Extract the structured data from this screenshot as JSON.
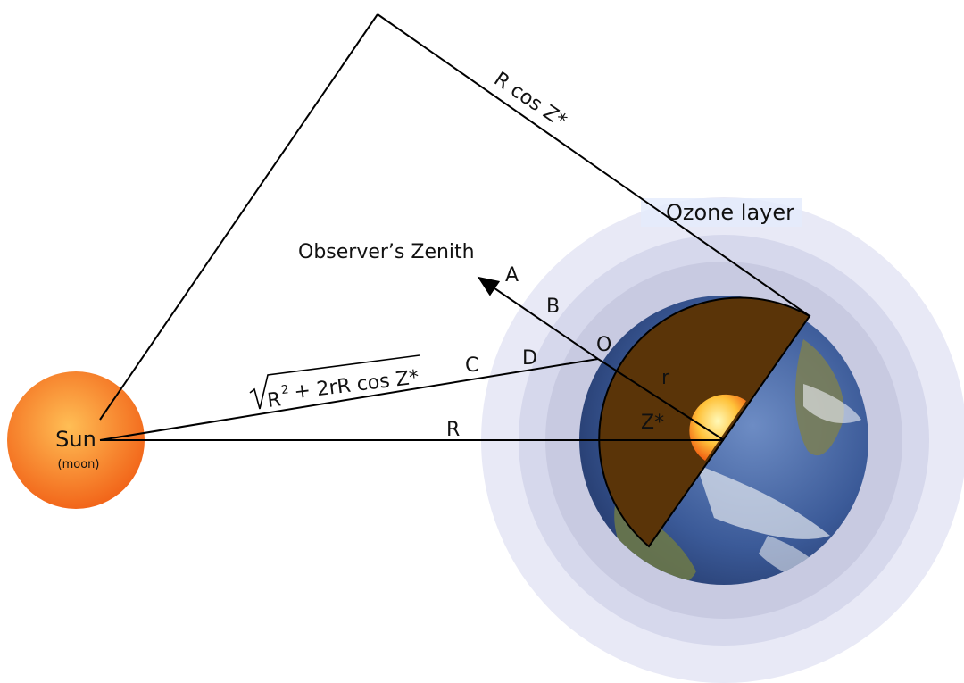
{
  "colors": {
    "background": "#ffffff",
    "atmosphere_outer": "#e7e8f6",
    "atmosphere_mid": "#d7d9ee",
    "atmosphere_inner": "#c9cbe2",
    "ozone_band": "#dfe6fb",
    "earth_ocean": "#3f5f9c",
    "earth_land": "#6f7a4b",
    "earth_cloud": "#e8ecf3",
    "mantle": "#5a3408",
    "core_inner": "#fff6a8",
    "core_outer": "#f26b12",
    "sun_inner": "#ffb347",
    "sun_outer": "#f46a12",
    "lines": "#000000"
  },
  "labels": {
    "sun": "Sun",
    "moon": "(moon)",
    "ozone": "Ozone layer",
    "zenith": "Observer’s Zenith",
    "r_cos_z": "R cos Z*",
    "sqrt_expr_rest": "+ 2rR cos Z*",
    "sqrt_expr_R": "R",
    "sqrt_expr_sup": "2",
    "R": "R",
    "r": "r",
    "z_star": "Z*",
    "z": "Z",
    "A": "A",
    "B": "B",
    "C": "C",
    "D": "D",
    "O": "O"
  }
}
